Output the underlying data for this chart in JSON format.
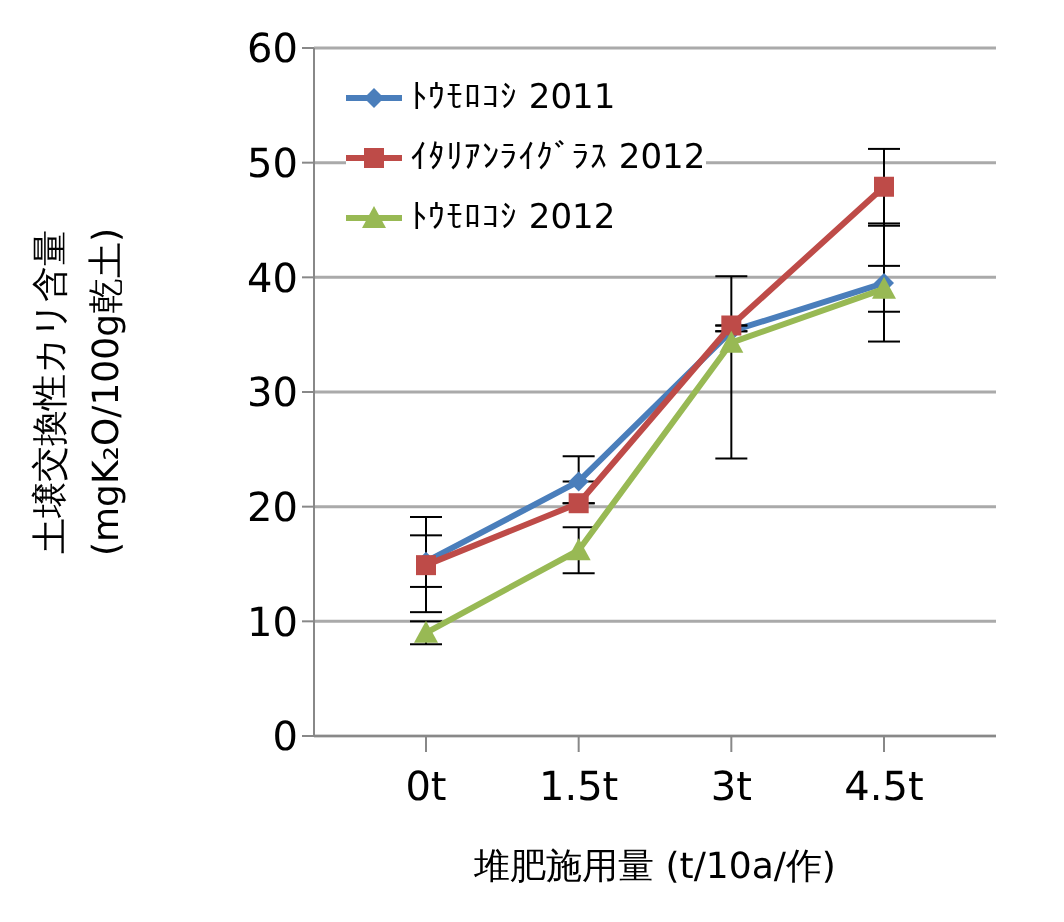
{
  "chart_data": {
    "type": "line",
    "xlabel": "堆肥施用量 (t/10a/作)",
    "ylabel": "土壌交換性カリ含量\n(mgK₂O/100g乾土)",
    "categories": [
      "0t",
      "1.5t",
      "3t",
      "4.5t"
    ],
    "series": [
      {
        "name": "ﾄｳﾓﾛｺｼ 2011",
        "color": "#4a7ebb",
        "marker": "diamond",
        "values": [
          15.2,
          22.2,
          35.3,
          39.5
        ],
        "errors": [
          [
            13,
            17.5
          ],
          [
            22.2,
            24.4
          ],
          null,
          [
            34.4,
            44.7
          ]
        ]
      },
      {
        "name": "ｲﾀﾘｱﾝﾗｲｸﾞﾗｽ 2012",
        "color": "#be4b48",
        "marker": "square",
        "values": [
          14.9,
          20.3,
          35.8,
          47.9
        ],
        "errors": [
          [
            10.8,
            19.1
          ],
          null,
          null,
          [
            44.5,
            51.2
          ]
        ]
      },
      {
        "name": "ﾄｳﾓﾛｺｼ 2012",
        "color": "#98b954",
        "marker": "triangle",
        "values": [
          9,
          16.2,
          34.3,
          39
        ],
        "errors": [
          [
            8,
            10
          ],
          [
            14.2,
            18.2
          ],
          [
            24.2,
            40.1
          ],
          [
            37,
            41
          ]
        ]
      }
    ],
    "ylim": [
      0,
      60
    ],
    "yticks": [
      0,
      10,
      20,
      30,
      40,
      50,
      60
    ],
    "grid": "y",
    "legend": "top left"
  }
}
